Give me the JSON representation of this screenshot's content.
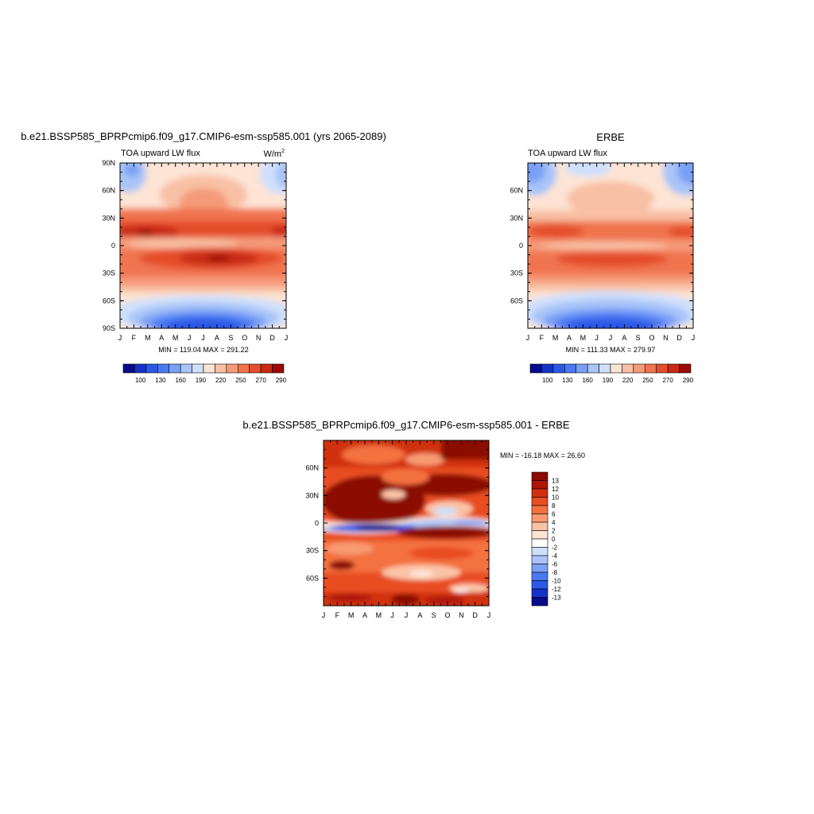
{
  "panels": [
    {
      "title": "b.e21.BSSP585_BPRPcmip6.f09_g17.CMIP6-esm-ssp585.001 (yrs 2065-2089)",
      "subtitle": "TOA upward LW flux",
      "units_base": "W/m",
      "units_exp": "2",
      "stats": "MIN = 119.04 MAX = 291.22",
      "x_ticks": [
        "J",
        "F",
        "M",
        "A",
        "M",
        "J",
        "J",
        "A",
        "S",
        "O",
        "N",
        "D",
        "J"
      ],
      "y_ticks": [
        "90N",
        "60N",
        "30N",
        "0",
        "30S",
        "60S",
        "90S"
      ],
      "colorbar_labels": [
        "100",
        "130",
        "160",
        "190",
        "220",
        "250",
        "270",
        "290"
      ]
    },
    {
      "title": "ERBE",
      "subtitle": "TOA upward LW flux",
      "stats": "MIN = 111.33 MAX = 279.97",
      "x_ticks": [
        "J",
        "F",
        "M",
        "A",
        "M",
        "J",
        "J",
        "A",
        "S",
        "O",
        "N",
        "D",
        "J"
      ],
      "y_ticks": [
        "60N",
        "30N",
        "0",
        "30S",
        "60S"
      ],
      "colorbar_labels": [
        "100",
        "130",
        "160",
        "190",
        "220",
        "250",
        "270",
        "290"
      ]
    },
    {
      "title": "b.e21.BSSP585_BPRPcmip6.f09_g17.CMIP6-esm-ssp585.001 - ERBE",
      "stats": "MIN = -16.18 MAX =  26.60",
      "x_ticks": [
        "J",
        "F",
        "M",
        "A",
        "M",
        "J",
        "J",
        "A",
        "S",
        "O",
        "N",
        "D",
        "J"
      ],
      "y_ticks": [
        "60N",
        "30N",
        "0",
        "30S",
        "60S"
      ],
      "colorbar_labels": [
        "13",
        "12",
        "10",
        "8",
        "6",
        "4",
        "2",
        "0",
        "-2",
        "-4",
        "-6",
        "-8",
        "-10",
        "-12",
        "-13"
      ]
    }
  ],
  "colors": {
    "flux_scale": [
      "#0a0a8c",
      "#1533c8",
      "#2b58e6",
      "#4a79f2",
      "#7aa0f5",
      "#a8c4f8",
      "#cfe0fb",
      "#fde4d4",
      "#f8c0a4",
      "#f59a78",
      "#f07450",
      "#e44d2c",
      "#c82a14",
      "#9c0a06"
    ],
    "diff_scale": [
      "#8b0a05",
      "#ad1508",
      "#d0300f",
      "#e84e22",
      "#f4713f",
      "#f89a72",
      "#fbc3a6",
      "#fde3d4",
      "#ffffff",
      "#cfe0fb",
      "#a8c4f8",
      "#7aa0f5",
      "#4a79f2",
      "#2b58e6",
      "#1533c8",
      "#0a0a8c"
    ]
  },
  "chart_data": [
    {
      "type": "heatmap",
      "title": "b.e21.BSSP585_BPRPcmip6.f09_g17.CMIP6-esm-ssp585.001 (yrs 2065-2089)",
      "subtitle": "TOA upward LW flux",
      "units": "W/m2",
      "x": [
        "J",
        "F",
        "M",
        "A",
        "M",
        "J",
        "J",
        "A",
        "S",
        "O",
        "N",
        "D",
        "J"
      ],
      "y": [
        90,
        60,
        30,
        0,
        -30,
        -60,
        -90
      ],
      "y_range": [
        -90,
        90
      ],
      "min": 119.04,
      "max": 291.22,
      "contour_levels": [
        100,
        115,
        130,
        145,
        160,
        175,
        190,
        205,
        220,
        235,
        250,
        260,
        270,
        280,
        290
      ]
    },
    {
      "type": "heatmap",
      "title": "ERBE",
      "subtitle": "TOA upward LW flux",
      "units": "W/m2",
      "x": [
        "J",
        "F",
        "M",
        "A",
        "M",
        "J",
        "J",
        "A",
        "S",
        "O",
        "N",
        "D",
        "J"
      ],
      "y": [
        60,
        30,
        0,
        -30,
        -60
      ],
      "y_range": [
        -90,
        90
      ],
      "min": 111.33,
      "max": 279.97,
      "contour_levels": [
        100,
        115,
        130,
        145,
        160,
        175,
        190,
        205,
        220,
        235,
        250,
        260,
        270,
        280,
        290
      ]
    },
    {
      "type": "heatmap",
      "title": "b.e21.BSSP585_BPRPcmip6.f09_g17.CMIP6-esm-ssp585.001 - ERBE",
      "x": [
        "J",
        "F",
        "M",
        "A",
        "M",
        "J",
        "J",
        "A",
        "S",
        "O",
        "N",
        "D",
        "J"
      ],
      "y": [
        60,
        30,
        0,
        -30,
        -60
      ],
      "y_range": [
        -90,
        90
      ],
      "min": -16.18,
      "max": 26.6,
      "contour_levels": [
        -13,
        -12,
        -10,
        -8,
        -6,
        -4,
        -2,
        0,
        2,
        4,
        6,
        8,
        10,
        12,
        13
      ]
    }
  ]
}
